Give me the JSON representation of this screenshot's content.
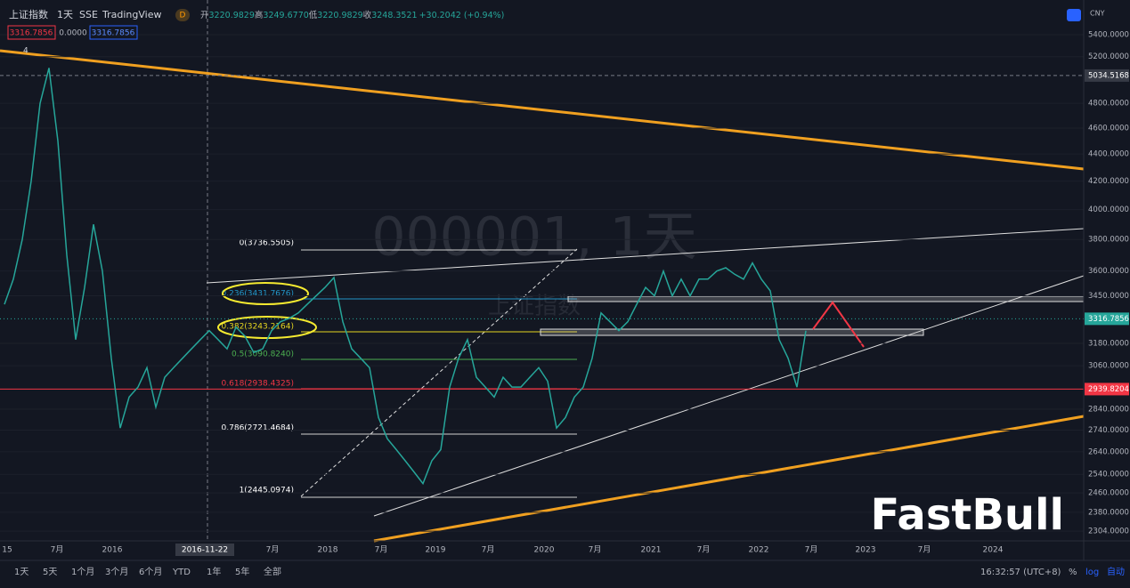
{
  "header": {
    "symbol": "上证指数",
    "interval": "1天",
    "exchange": "SSE",
    "source": "TradingView",
    "badge": "D",
    "ohlc": [
      {
        "key": "开",
        "value": "3220.9829"
      },
      {
        "key": "高",
        "value": "3249.6770"
      },
      {
        "key": "低",
        "value": "3220.9829"
      },
      {
        "key": "收",
        "value": "3248.3521"
      }
    ],
    "change": "+30.2042 (+0.94%)",
    "sell": "3316.7856",
    "spread": "0.0000",
    "buy": "3316.7856",
    "indicators": "4"
  },
  "chart_data": {
    "type": "line",
    "log_scale": true,
    "color": "#26a69a",
    "ylim": [
      2266,
      5731
    ],
    "values": [
      3400,
      3550,
      3800,
      4200,
      4800,
      5100,
      4500,
      3700,
      3200,
      3500,
      3900,
      3600,
      3100,
      2750,
      2900,
      2950,
      3050,
      2850,
      3000,
      3050,
      3100,
      3150,
      3200,
      3250,
      3200,
      3150,
      3270,
      3220,
      3130,
      3150,
      3250,
      3300,
      3320,
      3350,
      3400,
      3450,
      3500,
      3560,
      3300,
      3150,
      3100,
      3050,
      2800,
      2700,
      2650,
      2600,
      2550,
      2500,
      2600,
      2650,
      2950,
      3100,
      3200,
      3000,
      2950,
      2900,
      3000,
      2950,
      2950,
      3000,
      3050,
      2980,
      2750,
      2800,
      2900,
      2950,
      3100,
      3350,
      3300,
      3250,
      3300,
      3400,
      3500,
      3450,
      3600,
      3450,
      3550,
      3450,
      3550,
      3550,
      3600,
      3620,
      3580,
      3550,
      3650,
      3550,
      3480,
      3200,
      3100,
      2950,
      3250
    ],
    "currency": "CNY",
    "yticks": [
      {
        "value": 5400,
        "label": "5400.0000"
      },
      {
        "value": 5200,
        "label": "5200.0000"
      },
      {
        "value": 4800,
        "label": "4800.0000"
      },
      {
        "value": 4600,
        "label": "4600.0000"
      },
      {
        "value": 4400,
        "label": "4400.0000"
      },
      {
        "value": 4200,
        "label": "4200.0000"
      },
      {
        "value": 4000,
        "label": "4000.0000"
      },
      {
        "value": 3800,
        "label": "3800.0000"
      },
      {
        "value": 3600,
        "label": "3600.0000"
      },
      {
        "value": 3450,
        "label": "3450.0000"
      },
      {
        "value": 3180,
        "label": "3180.0000"
      },
      {
        "value": 3060,
        "label": "3060.0000"
      },
      {
        "value": 2840,
        "label": "2840.0000"
      },
      {
        "value": 2740,
        "label": "2740.0000"
      },
      {
        "value": 2640,
        "label": "2640.0000"
      },
      {
        "value": 2540,
        "label": "2540.0000"
      },
      {
        "value": 2460,
        "label": "2460.0000"
      },
      {
        "value": 2380,
        "label": "2380.0000"
      },
      {
        "value": 2304,
        "label": "2304.0000"
      }
    ],
    "crosshair_price": 5034.5168,
    "last_price": 3316.7856,
    "level_price": 2939.8204,
    "time_labels": [
      "15",
      "7月",
      "2016",
      "2016-11-22",
      "7月",
      "2018",
      "7月",
      "2019",
      "7月",
      "2020",
      "7月",
      "2021",
      "7月",
      "2022",
      "7月",
      "2023",
      "7月",
      "2024"
    ],
    "watermark": "000001, 1天",
    "watermark_name": "上证指数"
  },
  "fib_labels": [
    "0(3736.5505)",
    "0.236(3431.7676)",
    "0.382(3243.2164)",
    "0.5(3090.8240)",
    "0.618(2938.4325)",
    "0.786(2721.4684)",
    "1(2445.0974)"
  ],
  "toolbar": {
    "ranges": [
      "1天",
      "5天",
      "1个月",
      "3个月",
      "6个月",
      "YTD",
      "1年",
      "5年",
      "全部"
    ],
    "clock": "16:32:57 (UTC+8)",
    "percent": "%",
    "log": "log",
    "auto": "自动"
  },
  "logo": "FastBull"
}
